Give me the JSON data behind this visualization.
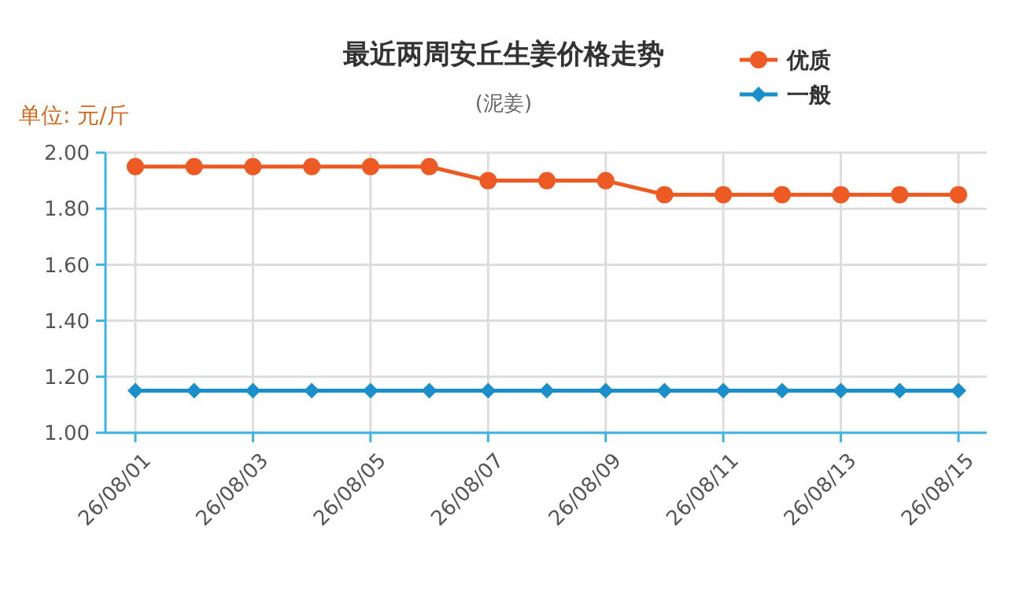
{
  "chart_data": {
    "type": "line",
    "title": "最近两周安丘生姜价格走势",
    "subtitle": "(泥姜)",
    "annotations": [
      "单位: 元/斤"
    ],
    "categories": [
      "26/08/01",
      null,
      "26/08/03",
      null,
      "26/08/05",
      null,
      "26/08/07",
      null,
      "26/08/09",
      null,
      "26/08/11",
      null,
      "26/08/13",
      null,
      "26/08/15"
    ],
    "series": [
      {
        "name": "优质",
        "color": "#ee5a24",
        "marker": "circle",
        "values": [
          1.95,
          1.95,
          1.95,
          1.95,
          1.95,
          1.95,
          1.9,
          1.9,
          1.9,
          1.85,
          1.85,
          1.85,
          1.85,
          1.85,
          1.85
        ]
      },
      {
        "name": "一般",
        "color": "#1a8fc9",
        "marker": "diamond",
        "values": [
          1.15,
          1.15,
          1.15,
          1.15,
          1.15,
          1.15,
          1.15,
          1.15,
          1.15,
          1.15,
          1.15,
          1.15,
          1.15,
          1.15,
          1.15
        ]
      }
    ],
    "ylim": [
      1,
      2
    ],
    "yticks": [
      {
        "value": 1,
        "label": "1.00"
      },
      {
        "value": 1.2,
        "label": "1.20"
      },
      {
        "value": 1.4,
        "label": "1.40"
      },
      {
        "value": 1.6,
        "label": "1.60"
      },
      {
        "value": 1.8,
        "label": "1.80"
      },
      {
        "value": 2,
        "label": "2.00"
      }
    ],
    "grid": true,
    "legend": "top right"
  }
}
